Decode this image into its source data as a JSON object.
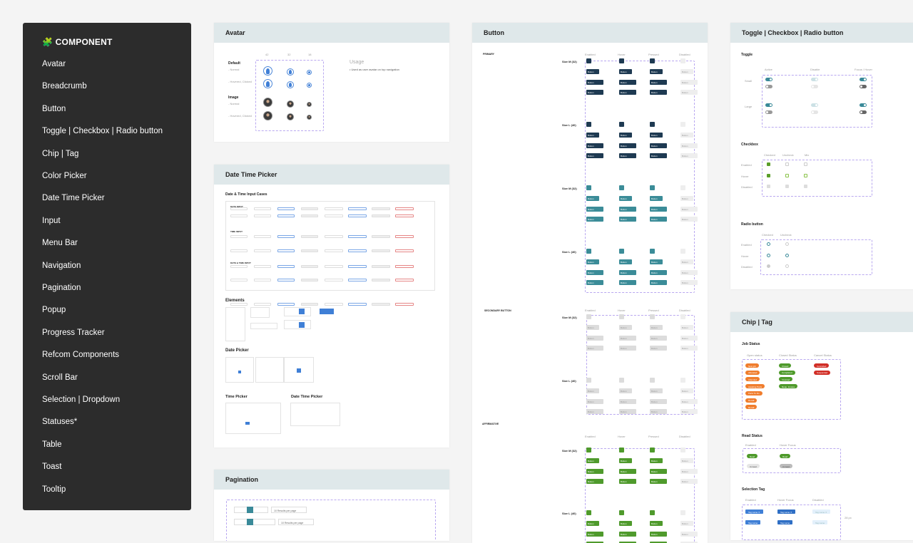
{
  "sidebar": {
    "title": "🧩 COMPONENT",
    "items": [
      "Avatar",
      "Breadcrumb",
      "Button",
      "Toggle | Checkbox | Radio button",
      "Chip | Tag",
      "Color Picker",
      "Date Time Picker",
      "Input",
      "Menu Bar",
      "Navigation",
      "Pagination",
      "Popup",
      "Progress Tracker",
      "Refcom Components",
      "Scroll Bar",
      "Selection | Dropdown",
      "Statuses*",
      "Table",
      "Toast",
      "Tooltip"
    ]
  },
  "avatar": {
    "title": "Avatar",
    "sizes": [
      "42",
      "32",
      "18"
    ],
    "default_label": "Default",
    "image_label": "Image",
    "normal": "- Normal",
    "hovered": "- Hovered, Clicked",
    "usage_title": "Usage",
    "usage_text": "•  Used as user avatar on top navigation"
  },
  "datetime": {
    "title": "Date Time Picker",
    "cases_title": "Date & Time Input Cases",
    "date_input": "DATE INPUT",
    "time_input": "TIME INPUT",
    "datetime_input": "DATE & TIME INPUT",
    "elements": "Elements",
    "date_picker": "Date Picker",
    "time_picker": "Time Picker",
    "datetime_picker": "Date Time Picker"
  },
  "pagination": {
    "title": "Pagination",
    "per_page": "10 Results per page"
  },
  "button": {
    "title": "Button",
    "primary": "PRIMARY",
    "secondary": "SECONDARY BUTTON",
    "affirmative": "AFFIRMATIVE",
    "states": [
      "Enabled",
      "Hover",
      "Pressed",
      "Disabled"
    ],
    "size_m": "Size M (32)",
    "size_l": "Size L (40)",
    "label": "Button",
    "colors": {
      "primary": "#1e3a52",
      "teal": "#3b8c98",
      "secondary": "#dcdcdc",
      "affirmative": "#4f9a2c",
      "disabled": "#eeeeee"
    }
  },
  "toggles": {
    "title": "Toggle | Checkbox | Radio button",
    "toggle": "Toggle",
    "toggle_cols": [
      "Active",
      "Disable",
      "Focus / Hover"
    ],
    "small": "Small",
    "large": "Large",
    "checkbox": "Checkbox",
    "cb_cols": [
      "Checked",
      "Uncheck",
      "Mix"
    ],
    "rows": [
      "Enabled",
      "Hover",
      "Disabled"
    ],
    "radio": "Radio button",
    "rd_cols": [
      "Checked",
      "Uncheck"
    ],
    "accent": "#3a8a99",
    "check_color": "#5a9e2a"
  },
  "chips": {
    "title": "Chip | Tag",
    "job_status": "Job Status",
    "cols": [
      "Open status",
      "Closed Status",
      "Cancel Status"
    ],
    "open": [
      "New job",
      "Allocated",
      "Attended",
      "Awaiting Parts",
      "Parts To Do",
      "Recall",
      "Recall"
    ],
    "closed": [
      "Closed",
      "Completed",
      "Invoiced",
      "Requ. Invoice"
    ],
    "cancel": [
      "Cancelled",
      "Suspended"
    ],
    "read_status": "Read Status",
    "read_cols": [
      "Enabled",
      "Hover Focus"
    ],
    "read": "Read",
    "unread": "Unread",
    "selection_tag": "Selection Tag",
    "sel_cols": [
      "Enabled",
      "Hover Focus",
      "Disabled"
    ],
    "tag": "Tag name",
    "tag_x": "Tag name ✕",
    "height_note": "28 px",
    "colors": {
      "open": "#f07d2d",
      "closed": "#4e9a2a",
      "cancel": "#d12e26",
      "tag": "#3f7fd6"
    }
  }
}
